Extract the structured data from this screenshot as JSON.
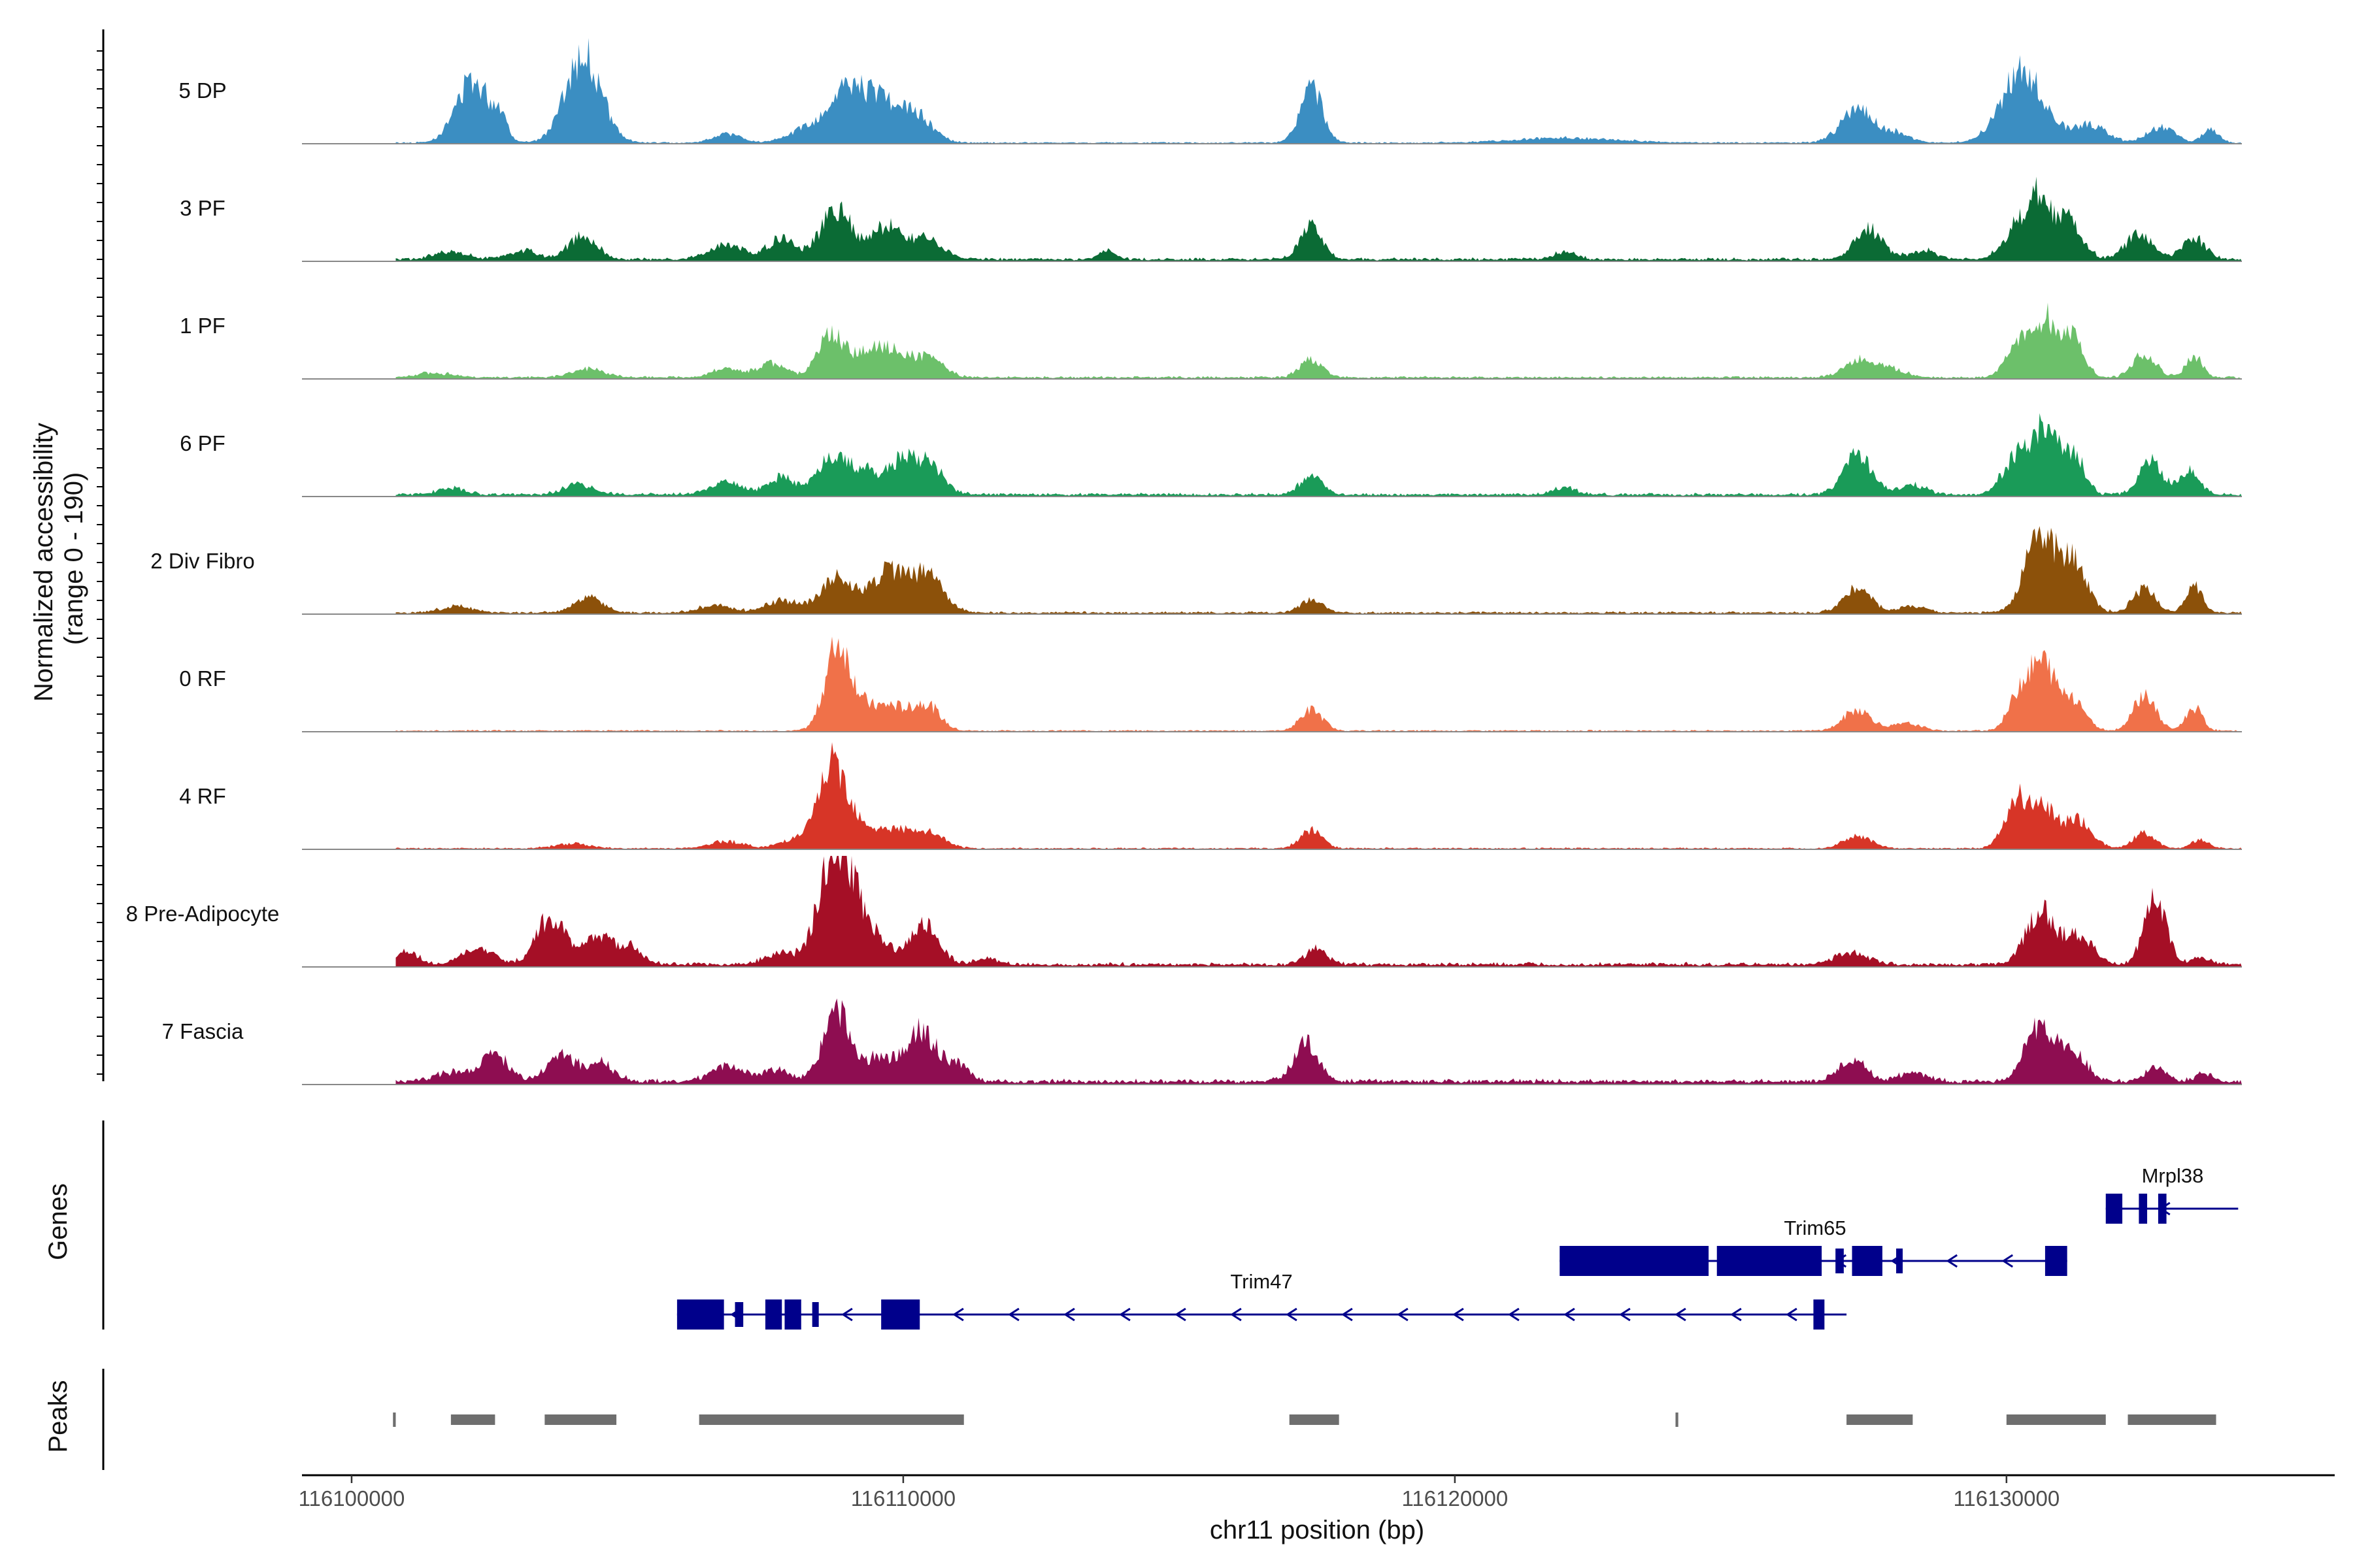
{
  "chart_data": {
    "type": "genome-track",
    "title": "",
    "chromosome": "chr11",
    "xlabel": "chr11 position (bp)",
    "xlim": [
      116099100,
      116135950
    ],
    "x_ticks": [
      116100000,
      116110000,
      116120000,
      116130000
    ],
    "x_tick_labels": [
      "116100000",
      "116110000",
      "116120000",
      "116130000"
    ],
    "coverage_ylabel": "Normalized accessibility\n(range 0 - 190)",
    "coverage_ylim": [
      0,
      190
    ],
    "genes_label": "Genes",
    "peaks_label": "Peaks",
    "tracks": [
      {
        "name": "5 DP",
        "color": "#3b8ec2",
        "base": 2,
        "peaks": [
          [
            116102200,
            105,
            300
          ],
          [
            116102700,
            35,
            120
          ],
          [
            116104200,
            145,
            320
          ],
          [
            116106800,
            15,
            250
          ],
          [
            116108200,
            20,
            300
          ],
          [
            116109000,
            90,
            350
          ],
          [
            116109600,
            55,
            250
          ],
          [
            116110200,
            50,
            300
          ],
          [
            116117400,
            90,
            200
          ],
          [
            116122000,
            8,
            900
          ],
          [
            116127300,
            55,
            300
          ],
          [
            116128000,
            15,
            250
          ],
          [
            116130300,
            120,
            380
          ],
          [
            116131500,
            30,
            300
          ],
          [
            116132800,
            25,
            250
          ],
          [
            116133700,
            22,
            150
          ]
        ]
      },
      {
        "name": "3 PF",
        "color": "#0b6b35",
        "base": 4,
        "peaks": [
          [
            116101800,
            12,
            300
          ],
          [
            116103100,
            15,
            250
          ],
          [
            116104200,
            40,
            250
          ],
          [
            116106800,
            25,
            300
          ],
          [
            116107800,
            35,
            250
          ],
          [
            116108800,
            85,
            280
          ],
          [
            116109700,
            55,
            250
          ],
          [
            116110400,
            35,
            300
          ],
          [
            116113700,
            15,
            150
          ],
          [
            116117400,
            55,
            200
          ],
          [
            116122000,
            12,
            200
          ],
          [
            116127500,
            50,
            250
          ],
          [
            116128500,
            15,
            250
          ],
          [
            116130200,
            55,
            250
          ],
          [
            116130600,
            85,
            200
          ],
          [
            116131100,
            65,
            250
          ],
          [
            116132400,
            40,
            250
          ],
          [
            116133400,
            35,
            200
          ]
        ]
      },
      {
        "name": "1 PF",
        "color": "#6cc06a",
        "base": 3,
        "peaks": [
          [
            116101500,
            8,
            300
          ],
          [
            116104300,
            14,
            300
          ],
          [
            116106800,
            15,
            250
          ],
          [
            116107600,
            22,
            250
          ],
          [
            116108700,
            75,
            250
          ],
          [
            116109300,
            30,
            200
          ],
          [
            116109800,
            50,
            300
          ],
          [
            116110500,
            30,
            250
          ],
          [
            116117400,
            30,
            200
          ],
          [
            116127300,
            30,
            250
          ],
          [
            116127900,
            15,
            250
          ],
          [
            116130200,
            60,
            200
          ],
          [
            116130700,
            95,
            200
          ],
          [
            116131200,
            65,
            200
          ],
          [
            116132500,
            40,
            200
          ],
          [
            116133400,
            35,
            150
          ]
        ]
      },
      {
        "name": "6 PF",
        "color": "#1a9b58",
        "base": 4,
        "peaks": [
          [
            116101800,
            10,
            250
          ],
          [
            116104100,
            18,
            250
          ],
          [
            116106800,
            20,
            300
          ],
          [
            116107800,
            28,
            250
          ],
          [
            116108700,
            65,
            250
          ],
          [
            116109300,
            40,
            250
          ],
          [
            116110000,
            60,
            250
          ],
          [
            116110500,
            45,
            250
          ],
          [
            116117400,
            30,
            200
          ],
          [
            116122000,
            12,
            200
          ],
          [
            116127300,
            65,
            250
          ],
          [
            116128300,
            15,
            250
          ],
          [
            116130200,
            65,
            250
          ],
          [
            116130700,
            105,
            200
          ],
          [
            116131200,
            70,
            200
          ],
          [
            116132600,
            55,
            200
          ],
          [
            116133300,
            40,
            200
          ]
        ]
      },
      {
        "name": "2 Div Fibro",
        "color": "#8c510a",
        "base": 3,
        "peaks": [
          [
            116101900,
            10,
            300
          ],
          [
            116104300,
            25,
            250
          ],
          [
            116106600,
            12,
            300
          ],
          [
            116107800,
            20,
            300
          ],
          [
            116108800,
            60,
            300
          ],
          [
            116109700,
            65,
            280
          ],
          [
            116110400,
            65,
            300
          ],
          [
            116117400,
            22,
            200
          ],
          [
            116127300,
            40,
            250
          ],
          [
            116128300,
            10,
            250
          ],
          [
            116130600,
            120,
            280
          ],
          [
            116131200,
            80,
            250
          ],
          [
            116132500,
            40,
            200
          ],
          [
            116133400,
            45,
            150
          ]
        ]
      },
      {
        "name": "0 RF",
        "color": "#f07149",
        "base": 2,
        "peaks": [
          [
            116108800,
            130,
            220
          ],
          [
            116109200,
            40,
            300
          ],
          [
            116109800,
            35,
            250
          ],
          [
            116110400,
            45,
            250
          ],
          [
            116117400,
            35,
            200
          ],
          [
            116127300,
            35,
            250
          ],
          [
            116128200,
            12,
            250
          ],
          [
            116130300,
            75,
            220
          ],
          [
            116130700,
            95,
            200
          ],
          [
            116131200,
            55,
            220
          ],
          [
            116132500,
            60,
            200
          ],
          [
            116133400,
            38,
            150
          ]
        ]
      },
      {
        "name": "4 RF",
        "color": "#d73527",
        "base": 2,
        "peaks": [
          [
            116104000,
            8,
            300
          ],
          [
            116106800,
            12,
            300
          ],
          [
            116108000,
            15,
            250
          ],
          [
            116108700,
            130,
            250
          ],
          [
            116109200,
            40,
            300
          ],
          [
            116109900,
            30,
            250
          ],
          [
            116110500,
            25,
            250
          ],
          [
            116117400,
            30,
            200
          ],
          [
            116127300,
            20,
            250
          ],
          [
            116130200,
            85,
            220
          ],
          [
            116130700,
            60,
            220
          ],
          [
            116131300,
            45,
            250
          ],
          [
            116132500,
            25,
            200
          ],
          [
            116133500,
            15,
            150
          ]
        ]
      },
      {
        "name": "8 Pre-Adipocyte",
        "color": "#a50f26",
        "base": 5,
        "peaks": [
          [
            116101000,
            22,
            200
          ],
          [
            116102300,
            25,
            300
          ],
          [
            116103600,
            80,
            250
          ],
          [
            116104400,
            45,
            250
          ],
          [
            116105000,
            30,
            250
          ],
          [
            116107800,
            20,
            300
          ],
          [
            116108600,
            80,
            220
          ],
          [
            116108900,
            160,
            280
          ],
          [
            116109500,
            40,
            300
          ],
          [
            116110400,
            65,
            250
          ],
          [
            116111500,
            10,
            200
          ],
          [
            116117500,
            25,
            200
          ],
          [
            116127200,
            20,
            300
          ],
          [
            116130600,
            90,
            250
          ],
          [
            116131300,
            50,
            250
          ],
          [
            116132700,
            105,
            200
          ],
          [
            116133500,
            12,
            150
          ]
        ]
      },
      {
        "name": "7 Fascia",
        "color": "#8e0d51",
        "base": 6,
        "peaks": [
          [
            116101800,
            15,
            300
          ],
          [
            116102600,
            45,
            250
          ],
          [
            116103800,
            45,
            250
          ],
          [
            116104500,
            30,
            250
          ],
          [
            116106800,
            25,
            300
          ],
          [
            116107700,
            20,
            250
          ],
          [
            116108800,
            110,
            250
          ],
          [
            116109500,
            35,
            250
          ],
          [
            116110300,
            85,
            300
          ],
          [
            116111000,
            25,
            200
          ],
          [
            116117300,
            65,
            220
          ],
          [
            116127200,
            35,
            250
          ],
          [
            116128300,
            15,
            250
          ],
          [
            116130600,
            95,
            250
          ],
          [
            116131200,
            45,
            250
          ],
          [
            116132700,
            25,
            200
          ],
          [
            116133600,
            15,
            150
          ]
        ]
      }
    ],
    "genes": [
      {
        "name": "Trim47",
        "strand": "-",
        "start": 116105900,
        "end": 116127100,
        "exons": [
          [
            116105900,
            116106750,
            "big"
          ],
          [
            116106950,
            116107100,
            "small"
          ],
          [
            116107500,
            116107800,
            "big"
          ],
          [
            116107850,
            116108150,
            "big"
          ],
          [
            116108350,
            116108450,
            "small"
          ],
          [
            116109600,
            116110300,
            "big"
          ],
          [
            116126500,
            116126700,
            "big"
          ]
        ]
      },
      {
        "name": "Trim65",
        "strand": "-",
        "start": 116121900,
        "end": 116131100,
        "exons": [
          [
            116121900,
            116124600,
            "big"
          ],
          [
            116124750,
            116126650,
            "big"
          ],
          [
            116126900,
            116127050,
            "small"
          ],
          [
            116127200,
            116127750,
            "big"
          ],
          [
            116128000,
            116128100,
            "small"
          ],
          [
            116130700,
            116131100,
            "big"
          ]
        ]
      },
      {
        "name": "Mrpl38",
        "strand": "-",
        "start": 116131800,
        "end": 116134200,
        "exons": [
          [
            116131800,
            116132100,
            "big"
          ],
          [
            116132400,
            116132550,
            "big"
          ],
          [
            116132750,
            116132900,
            "big"
          ]
        ]
      }
    ],
    "peak_regions": [
      [
        116100750,
        116100800
      ],
      [
        116101800,
        116102600
      ],
      [
        116103500,
        116104800
      ],
      [
        116106300,
        116111100
      ],
      [
        116117000,
        116117900
      ],
      [
        116124000,
        116124050
      ],
      [
        116127100,
        116128300
      ],
      [
        116130000,
        116131800
      ],
      [
        116132200,
        116133800
      ]
    ]
  }
}
